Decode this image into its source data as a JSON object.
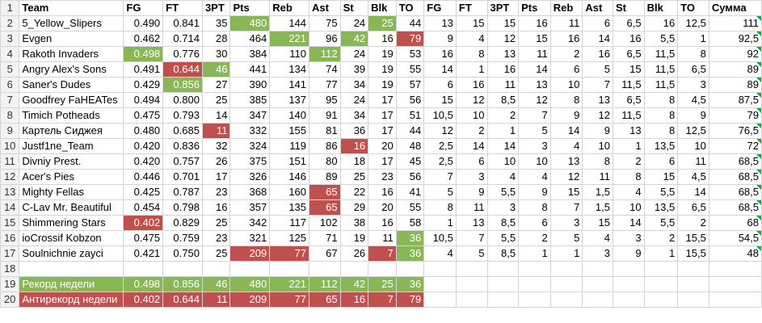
{
  "colors": {
    "green": "#8ab756",
    "red": "#c0504d"
  },
  "header": [
    "Team",
    "FG",
    "FT",
    "3PT",
    "Pts",
    "Reb",
    "Ast",
    "St",
    "Blk",
    "TO",
    "FG",
    "FT",
    "3PT",
    "Pts",
    "Reb",
    "Ast",
    "St",
    "Blk",
    "TO",
    "Сумма"
  ],
  "rows": [
    {
      "num": "2",
      "cells": [
        "5_Yellow_Slipers",
        "0.490",
        "0.841",
        "35",
        "480",
        "144",
        "75",
        "24",
        "25",
        "44",
        "13",
        "15",
        "15",
        "16",
        "11",
        "6",
        "6,5",
        "16",
        "12,5",
        "111"
      ],
      "hl": {
        "4": "g",
        "8": "g"
      }
    },
    {
      "num": "3",
      "cells": [
        "Evgen",
        "0.462",
        "0.714",
        "28",
        "464",
        "221",
        "96",
        "42",
        "16",
        "79",
        "9",
        "4",
        "12",
        "15",
        "16",
        "14",
        "16",
        "5,5",
        "1",
        "92,5"
      ],
      "hl": {
        "5": "g",
        "7": "g",
        "9": "r"
      }
    },
    {
      "num": "4",
      "cells": [
        "Rakoth Invaders",
        "0.498",
        "0.776",
        "30",
        "384",
        "110",
        "112",
        "24",
        "19",
        "53",
        "16",
        "8",
        "13",
        "11",
        "2",
        "16",
        "6,5",
        "11,5",
        "8",
        "92"
      ],
      "hl": {
        "1": "g",
        "6": "g"
      }
    },
    {
      "num": "5",
      "cells": [
        "Angry Alex's Sons",
        "0.491",
        "0.644",
        "46",
        "441",
        "134",
        "74",
        "39",
        "19",
        "55",
        "14",
        "1",
        "16",
        "14",
        "6",
        "5",
        "15",
        "11,5",
        "6,5",
        "89"
      ],
      "hl": {
        "2": "r",
        "3": "g"
      }
    },
    {
      "num": "6",
      "cells": [
        "Saner's Dudes",
        "0.429",
        "0.856",
        "27",
        "390",
        "141",
        "77",
        "34",
        "19",
        "57",
        "6",
        "16",
        "11",
        "13",
        "10",
        "7",
        "11,5",
        "11,5",
        "3",
        "89"
      ],
      "hl": {
        "2": "g"
      }
    },
    {
      "num": "7",
      "cells": [
        "Goodfrey FaHEATes",
        "0.494",
        "0.800",
        "25",
        "385",
        "137",
        "95",
        "24",
        "17",
        "56",
        "15",
        "12",
        "8,5",
        "12",
        "8",
        "13",
        "6,5",
        "8",
        "4,5",
        "87,5"
      ],
      "hl": {}
    },
    {
      "num": "8",
      "cells": [
        "Timich Potheads",
        "0.475",
        "0.793",
        "14",
        "347",
        "140",
        "91",
        "34",
        "17",
        "51",
        "10,5",
        "10",
        "2",
        "7",
        "9",
        "12",
        "11,5",
        "8",
        "9",
        "79"
      ],
      "hl": {}
    },
    {
      "num": "9",
      "cells": [
        "Картель Сиджея",
        "0.480",
        "0.685",
        "11",
        "332",
        "155",
        "81",
        "36",
        "17",
        "44",
        "12",
        "2",
        "1",
        "5",
        "14",
        "9",
        "13",
        "8",
        "12,5",
        "76,5"
      ],
      "hl": {
        "3": "r"
      }
    },
    {
      "num": "10",
      "cells": [
        "Justf1ne_Team",
        "0.420",
        "0.836",
        "32",
        "324",
        "119",
        "86",
        "16",
        "20",
        "48",
        "2,5",
        "14",
        "14",
        "3",
        "4",
        "10",
        "1",
        "13,5",
        "10",
        "72"
      ],
      "hl": {
        "7": "r"
      }
    },
    {
      "num": "11",
      "cells": [
        "Divniy Prest.",
        "0.420",
        "0.757",
        "26",
        "375",
        "151",
        "80",
        "18",
        "17",
        "45",
        "2,5",
        "6",
        "10",
        "10",
        "13",
        "8",
        "2",
        "6",
        "11",
        "68,5"
      ],
      "hl": {}
    },
    {
      "num": "12",
      "cells": [
        "Acer's Pies",
        "0.446",
        "0.701",
        "17",
        "326",
        "146",
        "89",
        "25",
        "23",
        "56",
        "7",
        "3",
        "4",
        "4",
        "12",
        "11",
        "8",
        "15",
        "4,5",
        "68,5"
      ],
      "hl": {}
    },
    {
      "num": "13",
      "cells": [
        "Mighty Fellas",
        "0.425",
        "0.787",
        "23",
        "368",
        "160",
        "65",
        "22",
        "16",
        "41",
        "5",
        "9",
        "5,5",
        "9",
        "15",
        "1,5",
        "4",
        "5,5",
        "14",
        "68,5"
      ],
      "hl": {
        "6": "r"
      }
    },
    {
      "num": "14",
      "cells": [
        "C-Lav Mr. Beautiful",
        "0.454",
        "0.798",
        "16",
        "357",
        "135",
        "65",
        "29",
        "20",
        "55",
        "8",
        "11",
        "3",
        "8",
        "7",
        "1,5",
        "10",
        "13,5",
        "6,5",
        "68,5"
      ],
      "hl": {
        "6": "r"
      }
    },
    {
      "num": "15",
      "cells": [
        "Shimmering Stars",
        "0.402",
        "0.829",
        "25",
        "342",
        "117",
        "102",
        "38",
        "16",
        "58",
        "1",
        "13",
        "8,5",
        "6",
        "3",
        "15",
        "14",
        "5,5",
        "2",
        "68"
      ],
      "hl": {
        "1": "r"
      }
    },
    {
      "num": "16",
      "cells": [
        "ioCrossif Kobzon",
        "0.475",
        "0.759",
        "23",
        "321",
        "125",
        "71",
        "19",
        "11",
        "36",
        "10,5",
        "7",
        "5,5",
        "2",
        "5",
        "4",
        "3",
        "2",
        "15,5",
        "54,5"
      ],
      "hl": {
        "9": "g"
      }
    },
    {
      "num": "17",
      "cells": [
        "Soulnichnie zayci",
        "0.421",
        "0.750",
        "25",
        "209",
        "77",
        "67",
        "26",
        "7",
        "36",
        "4",
        "5",
        "8,5",
        "1",
        "1",
        "3",
        "9",
        "1",
        "15,5",
        "48"
      ],
      "hl": {
        "4": "r",
        "5": "r",
        "8": "r",
        "9": "g"
      }
    }
  ],
  "empty_row_num": "18",
  "record": {
    "num": "19",
    "label": "Рекорд недели",
    "values": [
      "0.498",
      "0.856",
      "46",
      "480",
      "221",
      "112",
      "42",
      "25",
      "36"
    ]
  },
  "antirecord": {
    "num": "20",
    "label": "Антирекорд недели",
    "values": [
      "0.402",
      "0.644",
      "11",
      "209",
      "77",
      "65",
      "16",
      "7",
      "79"
    ]
  }
}
